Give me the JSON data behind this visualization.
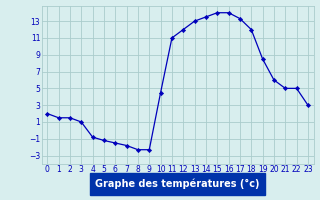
{
  "hours": [
    0,
    1,
    2,
    3,
    4,
    5,
    6,
    7,
    8,
    9,
    10,
    11,
    12,
    13,
    14,
    15,
    16,
    17,
    18,
    19,
    20,
    21,
    22,
    23
  ],
  "temps": [
    2.0,
    1.5,
    1.5,
    1.0,
    -0.8,
    -1.2,
    -1.5,
    -1.8,
    -2.3,
    -2.3,
    4.5,
    11.0,
    12.0,
    13.0,
    13.5,
    14.0,
    14.0,
    13.3,
    12.0,
    8.5,
    6.0,
    5.0,
    5.0,
    3.0
  ],
  "bg_color": "#d8eeee",
  "grid_color": "#aacccc",
  "line_color": "#0000bb",
  "marker_color": "#0000bb",
  "xlabel": "Graphe des températures (°c)",
  "yticks": [
    -3,
    -1,
    1,
    3,
    5,
    7,
    9,
    11,
    13
  ],
  "xticks": [
    0,
    1,
    2,
    3,
    4,
    5,
    6,
    7,
    8,
    9,
    10,
    11,
    12,
    13,
    14,
    15,
    16,
    17,
    18,
    19,
    20,
    21,
    22,
    23
  ],
  "ylim": [
    -4.0,
    14.8
  ],
  "xlim": [
    -0.5,
    23.5
  ],
  "tick_color": "#0000bb",
  "tick_fontsize": 5.5,
  "xlabel_fontsize": 7.0,
  "xlabel_bg": "#0033aa",
  "xlabel_fg": "white",
  "spine_color": "#aacccc"
}
